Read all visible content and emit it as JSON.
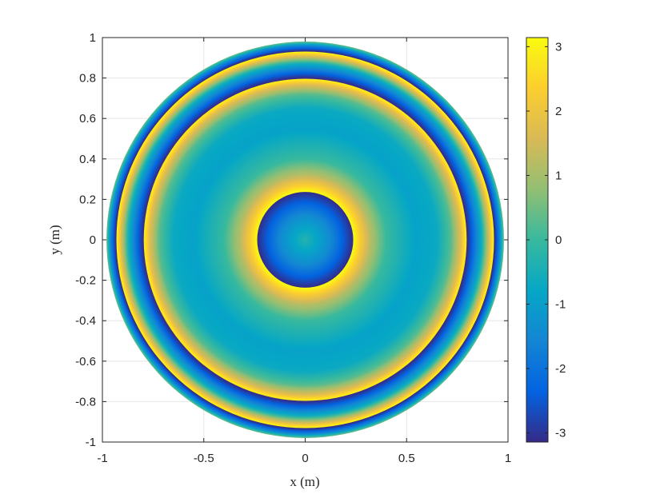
{
  "chart_data": {
    "type": "heatmap",
    "subtype": "phase map on circular aperture",
    "title": "",
    "xlabel": "x (m)",
    "ylabel": "y (m)",
    "xlim": [
      -1,
      1
    ],
    "ylim": [
      -1,
      1
    ],
    "xticks": [
      -1,
      -0.5,
      0,
      0.5,
      1
    ],
    "xtick_labels": [
      "-1",
      "-0.5",
      "0",
      "0.5",
      "1"
    ],
    "yticks": [
      1,
      0.8,
      0.6,
      0.4,
      0.2,
      0,
      -0.2,
      -0.4,
      -0.6,
      -0.8,
      -1
    ],
    "ytick_labels": [
      "1",
      "0.8",
      "0.6",
      "0.4",
      "0.2",
      "0",
      "-0.2",
      "-0.4",
      "-0.6",
      "-0.8",
      "-1"
    ],
    "grid": true,
    "aperture_radius": 0.98,
    "colormap": "parula",
    "clim": [
      -3.14159,
      3.14159
    ],
    "colorbar": {
      "ticks": [
        3,
        2,
        1,
        0,
        -1,
        -2,
        -3
      ],
      "tick_labels": [
        "3",
        "2",
        "1",
        "0",
        "-1",
        "-2",
        "-3"
      ]
    },
    "radial_profile": {
      "r": [
        0.0,
        0.12,
        0.2,
        0.235,
        0.24,
        0.27,
        0.32,
        0.4,
        0.55,
        0.65,
        0.72,
        0.77,
        0.79,
        0.8,
        0.82,
        0.87,
        0.91,
        0.93,
        0.935,
        0.96,
        0.98
      ],
      "phase": [
        -0.3,
        -1.4,
        -2.6,
        -3.1,
        3.1,
        2.3,
        1.2,
        0.0,
        -0.9,
        -0.7,
        0.3,
        1.8,
        2.8,
        -3.1,
        -2.5,
        -0.6,
        1.8,
        3.1,
        -3.1,
        -1.5,
        0.5
      ]
    },
    "colors": {
      "parula_stops": [
        "#352a87",
        "#0363e1",
        "#1485d4",
        "#06a7c6",
        "#38b99e",
        "#92bf73",
        "#d9ba56",
        "#fcce2e",
        "#f9fb0e"
      ],
      "axes_line": "#262626",
      "grid_line": "#e6e6e6"
    }
  }
}
